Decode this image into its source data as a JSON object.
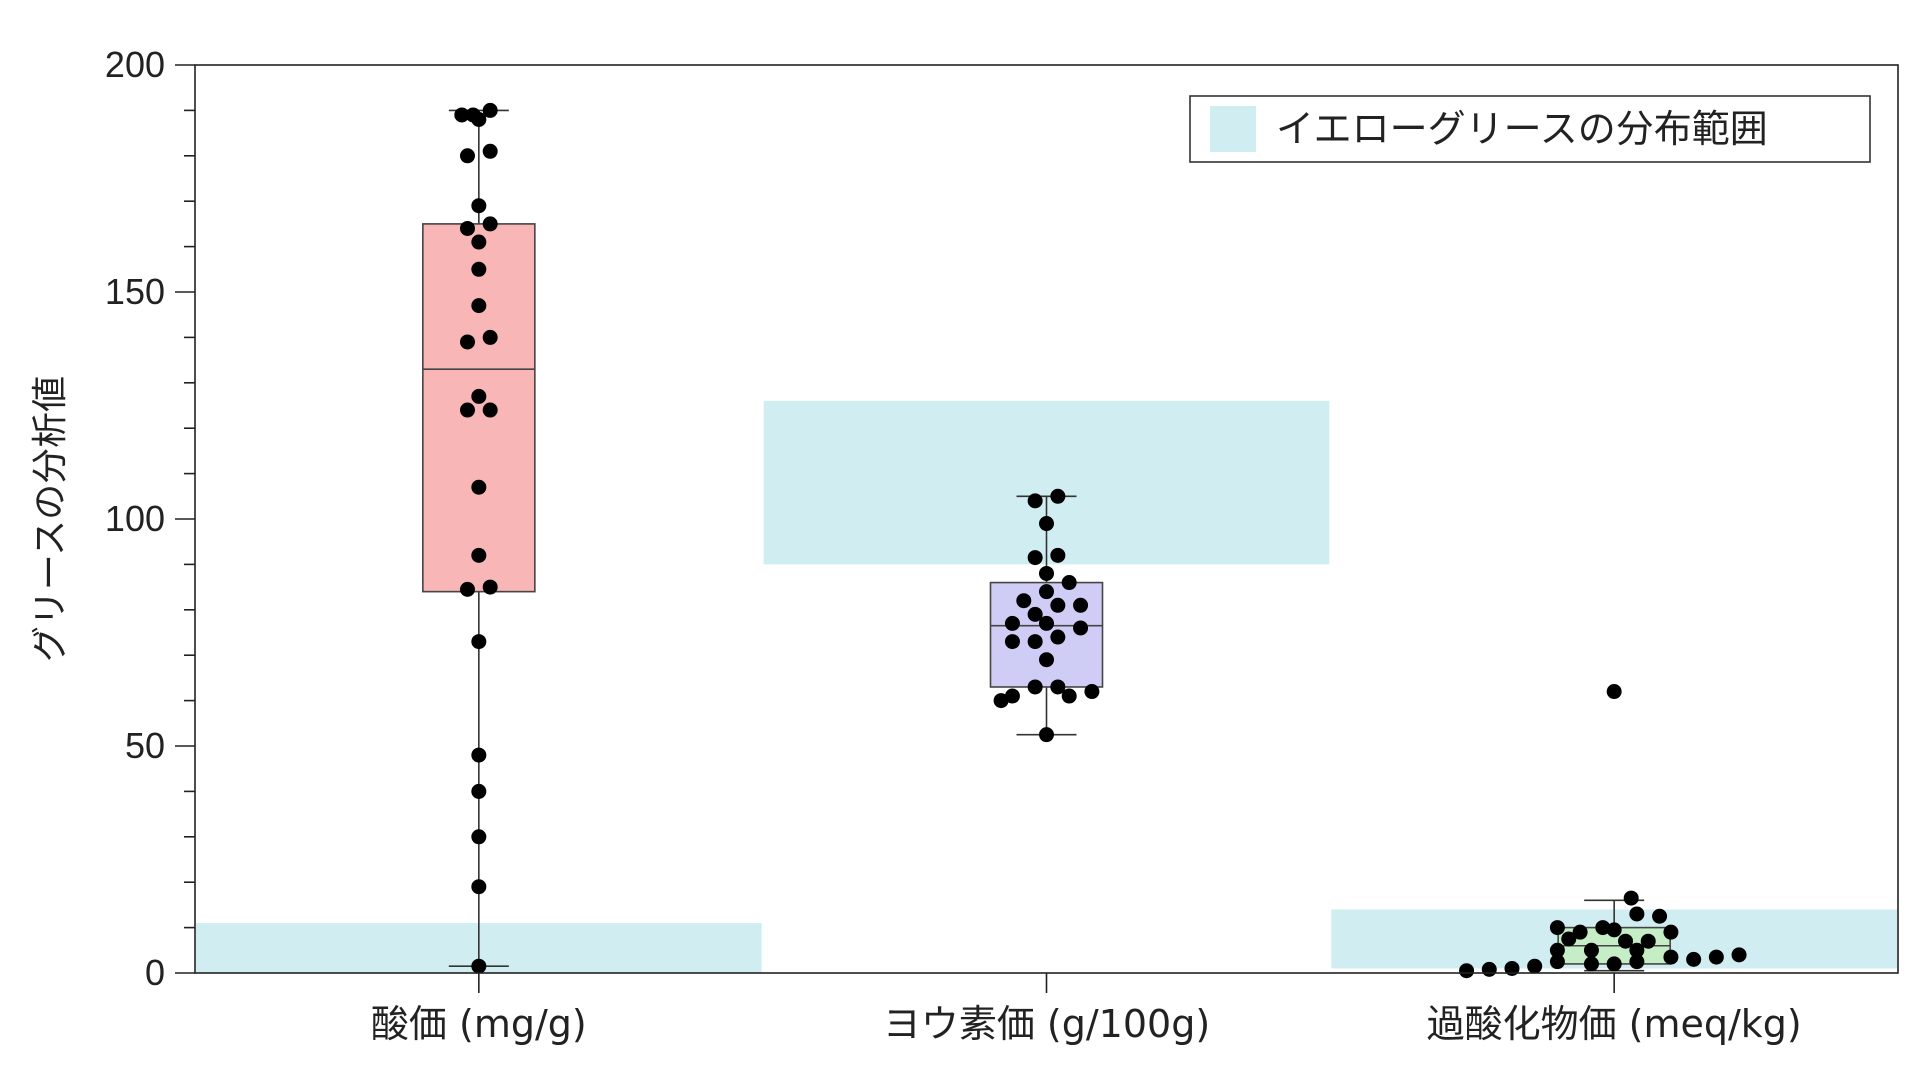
{
  "chart_data": {
    "type": "box",
    "title": "",
    "xlabel": "",
    "ylabel": "グリースの分析値",
    "ylim": [
      0,
      200
    ],
    "yticks": [
      0,
      50,
      100,
      150,
      200
    ],
    "legend": {
      "label": "イエローグリースの分布範囲",
      "color": "#d0eef1",
      "position": "top-right"
    },
    "grid": false,
    "categories": [
      "酸価 (mg/g)",
      "ヨウ素価 (g/100g)",
      "過酸化物価 (meq/kg)"
    ],
    "ranges": [
      {
        "low": 0,
        "high": 11
      },
      {
        "low": 90,
        "high": 126
      },
      {
        "low": 1,
        "high": 14
      }
    ],
    "boxes": [
      {
        "whisker_low": 1.5,
        "q1": 84,
        "median": 133,
        "q3": 165,
        "whisker_high": 190,
        "color": "#f9b6b6"
      },
      {
        "whisker_low": 52.5,
        "q1": 63,
        "median": 76.5,
        "q3": 86,
        "whisker_high": 105,
        "color": "#cfcdf6"
      },
      {
        "whisker_low": 0.5,
        "q1": 2,
        "median": 6,
        "q3": 10,
        "whisker_high": 16,
        "color": "#c6eec6"
      }
    ],
    "points": [
      [
        {
          "y": 190,
          "dx": 0.02
        },
        {
          "y": 189,
          "dx": -0.01
        },
        {
          "y": 189,
          "dx": -0.03
        },
        {
          "y": 188,
          "dx": 0.0
        },
        {
          "y": 181,
          "dx": 0.02
        },
        {
          "y": 180,
          "dx": -0.02
        },
        {
          "y": 169,
          "dx": 0.0
        },
        {
          "y": 165,
          "dx": 0.02
        },
        {
          "y": 164,
          "dx": -0.02
        },
        {
          "y": 161,
          "dx": 0.0
        },
        {
          "y": 155,
          "dx": 0.0
        },
        {
          "y": 147,
          "dx": 0.0
        },
        {
          "y": 140,
          "dx": 0.02
        },
        {
          "y": 139,
          "dx": -0.02
        },
        {
          "y": 127,
          "dx": 0.0
        },
        {
          "y": 124,
          "dx": -0.02
        },
        {
          "y": 124,
          "dx": 0.02
        },
        {
          "y": 107,
          "dx": 0.0
        },
        {
          "y": 92,
          "dx": 0.0
        },
        {
          "y": 85,
          "dx": 0.02
        },
        {
          "y": 84.5,
          "dx": -0.02
        },
        {
          "y": 73,
          "dx": 0.0
        },
        {
          "y": 48,
          "dx": 0.0
        },
        {
          "y": 40,
          "dx": 0.0
        },
        {
          "y": 30,
          "dx": 0.0
        },
        {
          "y": 19,
          "dx": 0.0
        },
        {
          "y": 1.5,
          "dx": 0.0
        }
      ],
      [
        {
          "y": 105,
          "dx": 0.02
        },
        {
          "y": 104,
          "dx": -0.02
        },
        {
          "y": 99,
          "dx": 0.0
        },
        {
          "y": 92,
          "dx": 0.02
        },
        {
          "y": 91.5,
          "dx": -0.02
        },
        {
          "y": 88,
          "dx": 0.0
        },
        {
          "y": 86,
          "dx": 0.04
        },
        {
          "y": 84,
          "dx": 0.0
        },
        {
          "y": 82,
          "dx": -0.04
        },
        {
          "y": 81,
          "dx": 0.06
        },
        {
          "y": 81,
          "dx": 0.02
        },
        {
          "y": 79,
          "dx": -0.02
        },
        {
          "y": 77,
          "dx": -0.06
        },
        {
          "y": 77,
          "dx": 0.0
        },
        {
          "y": 76,
          "dx": 0.06
        },
        {
          "y": 74,
          "dx": 0.02
        },
        {
          "y": 73,
          "dx": -0.06
        },
        {
          "y": 73,
          "dx": -0.02
        },
        {
          "y": 69,
          "dx": 0.0
        },
        {
          "y": 63,
          "dx": -0.02
        },
        {
          "y": 63,
          "dx": 0.02
        },
        {
          "y": 62,
          "dx": 0.08
        },
        {
          "y": 61,
          "dx": -0.06
        },
        {
          "y": 61,
          "dx": 0.04
        },
        {
          "y": 60,
          "dx": -0.08
        },
        {
          "y": 52.5,
          "dx": 0.0
        }
      ],
      [
        {
          "y": 62,
          "dx": 0.0
        },
        {
          "y": 16.5,
          "dx": 0.03
        },
        {
          "y": 13,
          "dx": 0.04
        },
        {
          "y": 12.5,
          "dx": 0.08
        },
        {
          "y": 10,
          "dx": -0.1
        },
        {
          "y": 10,
          "dx": -0.02
        },
        {
          "y": 9.5,
          "dx": 0.0
        },
        {
          "y": 9,
          "dx": -0.06
        },
        {
          "y": 9,
          "dx": 0.1
        },
        {
          "y": 7.5,
          "dx": -0.08
        },
        {
          "y": 7,
          "dx": 0.02
        },
        {
          "y": 7,
          "dx": 0.06
        },
        {
          "y": 5,
          "dx": -0.1
        },
        {
          "y": 5,
          "dx": -0.04
        },
        {
          "y": 5,
          "dx": 0.04
        },
        {
          "y": 4,
          "dx": 0.22
        },
        {
          "y": 3.5,
          "dx": 0.1
        },
        {
          "y": 3.5,
          "dx": 0.18
        },
        {
          "y": 3,
          "dx": 0.14
        },
        {
          "y": 2.5,
          "dx": -0.1
        },
        {
          "y": 2.5,
          "dx": 0.04
        },
        {
          "y": 2,
          "dx": -0.04
        },
        {
          "y": 2,
          "dx": 0.0
        },
        {
          "y": 1.5,
          "dx": -0.14
        },
        {
          "y": 1,
          "dx": -0.18
        },
        {
          "y": 0.8,
          "dx": -0.22
        },
        {
          "y": 0.5,
          "dx": -0.26
        }
      ]
    ]
  }
}
